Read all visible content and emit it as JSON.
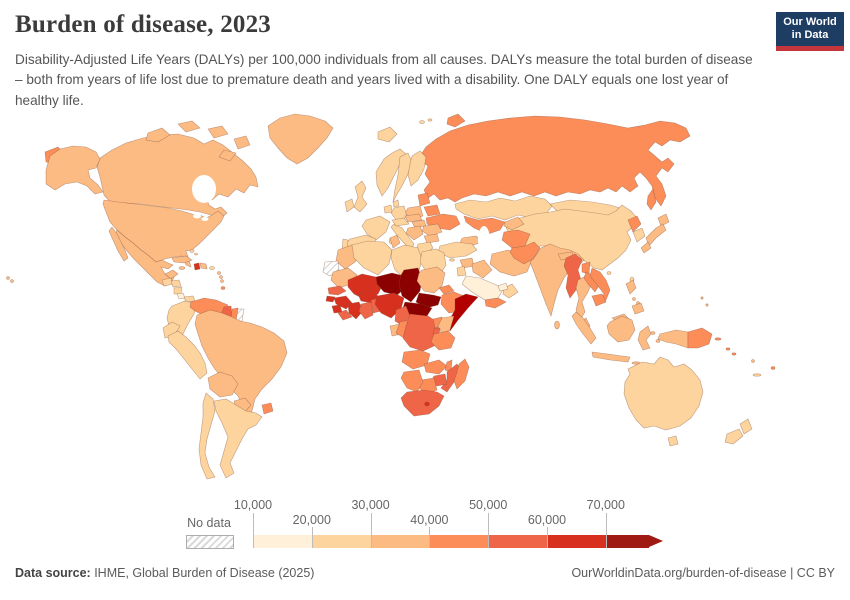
{
  "header": {
    "title": "Burden of disease, 2023",
    "subtitle": "Disability-Adjusted Life Years (DALYs) per 100,000 individuals from all causes. DALYs measure the total burden of disease – both from years of life lost due to premature death and years lived with a disability. One DALY equals one lost year of healthy life."
  },
  "logo": {
    "line1": "Our World",
    "line2": "in Data",
    "bg_color": "#1d3d63",
    "bar_color": "#c5353c"
  },
  "legend": {
    "no_data_label": "No data",
    "ticks": [
      "10,000",
      "20,000",
      "30,000",
      "40,000",
      "50,000",
      "60,000",
      "70,000"
    ],
    "bin_colors": [
      "#fef0d9",
      "#fdd49e",
      "#fdbb84",
      "#fc8d59",
      "#ef6548",
      "#d7301f",
      "#9e1a13"
    ]
  },
  "footer": {
    "source_label": "Data source:",
    "source_text": " IHME, Global Burden of Disease (2025)",
    "link_text": "OurWorldinData.org/burden-of-disease | CC BY"
  },
  "chart_data": {
    "type": "heatmap",
    "subtype": "choropleth_world_map",
    "title": "Burden of disease, 2023",
    "metric": "Disability-Adjusted Life Years (DALYs) per 100,000 individuals, all causes",
    "year": 2023,
    "legend_position": "bottom",
    "bins": [
      {
        "range": "10,000–20,000",
        "color": "#fef0d9",
        "countries": [
          "Costa Rica",
          "Saudi Arabia",
          "United Arab Emirates/Qatar"
        ]
      },
      {
        "range": "20,000–30,000",
        "color": "#fdd49e",
        "countries": [
          "Iceland",
          "Norway",
          "Sweden",
          "Finland",
          "Denmark",
          "United Kingdom",
          "Ireland",
          "France",
          "Germany",
          "Netherlands/Belgium",
          "Spain",
          "Portugal",
          "Italy",
          "Switzerland/Austria",
          "Greece",
          "Cyprus",
          "Turkey",
          "Israel/Jordan",
          "Oman",
          "Kazakhstan",
          "Mongolia",
          "China",
          "Taiwan",
          "South Korea",
          "Australia",
          "New Zealand",
          "New Caledonia",
          "Colombia",
          "Ecuador",
          "Peru",
          "Chile",
          "Argentina",
          "Guatemala",
          "Honduras",
          "Nicaragua",
          "Panama",
          "Algeria",
          "Libya",
          "Egypt",
          "Bahamas",
          "Puerto Rico"
        ]
      },
      {
        "range": "30,000–40,000",
        "color": "#fdbb84",
        "countries": [
          "United States",
          "Canada",
          "Greenland",
          "Mexico",
          "Cuba",
          "Jamaica",
          "Dominican Republic",
          "Lesser Antilles",
          "Brazil",
          "Bolivia",
          "Paraguay",
          "Morocco",
          "Tunisia",
          "Mauritania",
          "Sudan",
          "Kenya",
          "Gabon",
          "Poland",
          "Czechia/Slovakia",
          "Hungary",
          "Romania",
          "Balkans",
          "Bulgaria",
          "Caucasus",
          "Iran",
          "Iraq",
          "Syria",
          "Kyrgyzstan/Tajikistan",
          "India",
          "Nepal",
          "Bhutan",
          "Sri Lanka",
          "Thailand",
          "Malaysia",
          "Indonesia",
          "Philippines",
          "Japan",
          "Vanuatu",
          "Micronesia"
        ]
      },
      {
        "range": "40,000–50,000",
        "color": "#fc8d59",
        "countries": [
          "Russia",
          "Ukraine",
          "Belarus",
          "Baltic states",
          "Uzbekistan/Turkmenistan",
          "Afghanistan",
          "Pakistan",
          "Bangladesh",
          "Laos",
          "Vietnam",
          "Cambodia",
          "North Korea",
          "Papua New Guinea",
          "Solomon Islands",
          "Fiji",
          "Timor-Leste",
          "Venezuela",
          "Uruguay",
          "Suriname",
          "Trinidad and Tobago",
          "Yemen",
          "Eritrea",
          "Ethiopia",
          "Uganda",
          "Tanzania",
          "Congo",
          "Angola",
          "Zambia",
          "Malawi",
          "Namibia",
          "Botswana",
          "Madagascar"
        ]
      },
      {
        "range": "50,000–60,000",
        "color": "#ef6548",
        "countries": [
          "Myanmar",
          "Guyana",
          "Senegal",
          "Liberia",
          "Ghana",
          "Togo/Benin",
          "Cameroon",
          "DR Congo",
          "Rwanda/Burundi",
          "Mozambique",
          "Zimbabwe",
          "South Africa"
        ]
      },
      {
        "range": "60,000–70,000",
        "color": "#d7301f",
        "countries": [
          "Haiti",
          "Mali",
          "Burkina Faso",
          "Côte d'Ivoire",
          "Guinea",
          "Guinea-Bissau",
          "Sierra Leone",
          "Nigeria",
          "Lesotho"
        ]
      },
      {
        "range": "> 70,000",
        "color": "#9e1a13",
        "countries": [
          "Niger",
          "Chad",
          "Central African Republic",
          "South Sudan",
          "Somalia"
        ]
      }
    ],
    "no_data": [
      "Western Sahara",
      "French Guiana"
    ]
  },
  "map": {
    "regions": {
      "united_states": "#fdbb84",
      "canada": "#fdbb84",
      "greenland": "#fdbb84",
      "mexico": "#fdbb84",
      "guatemala": "#fdd49e",
      "honduras": "#fdd49e",
      "nicaragua": "#fdd49e",
      "costa_rica": "#fef0d9",
      "panama": "#fdd49e",
      "cuba": "#fdbb84",
      "jamaica": "#fdbb84",
      "haiti": "#d7301f",
      "dominican_republic": "#fdbb84",
      "puerto_rico": "#fdd49e",
      "bahamas": "#fdd49e",
      "lesser_antilles": "#fdbb84",
      "trinidad": "#fc8d59",
      "colombia": "#fdd49e",
      "venezuela": "#fc8d59",
      "guyana": "#ef6548",
      "suriname": "#fc8d59",
      "french_guiana": "no-data",
      "ecuador": "#fdd49e",
      "peru": "#fdd49e",
      "brazil": "#fdbb84",
      "bolivia": "#fdbb84",
      "paraguay": "#fdbb84",
      "uruguay": "#fc8d59",
      "argentina": "#fdd49e",
      "chile": "#fdd49e",
      "iceland": "#fdd49e",
      "norway": "#fdd49e",
      "sweden": "#fdd49e",
      "finland": "#fdd49e",
      "denmark": "#fdd49e",
      "united_kingdom": "#fdd49e",
      "ireland": "#fdd49e",
      "france": "#fdd49e",
      "germany": "#fdd49e",
      "benelux": "#fdd49e",
      "spain": "#fdd49e",
      "portugal": "#fdd49e",
      "italy": "#fdd49e",
      "switzerland_austria": "#fdd49e",
      "czech_slovakia": "#fdbb84",
      "poland": "#fdbb84",
      "hungary": "#fdbb84",
      "romania": "#fdbb84",
      "serbia_balkans": "#fdbb84",
      "bulgaria": "#fdbb84",
      "greece": "#fdd49e",
      "cyprus": "#fdd49e",
      "baltics": "#fc8d59",
      "belarus": "#fc8d59",
      "ukraine": "#fc8d59",
      "russia": "#fc8d59",
      "svalbard": "#fdd49e",
      "kazakhstan": "#fdd49e",
      "uzbek_turkmen": "#fc8d59",
      "kyrgyz_tajik": "#fdbb84",
      "caucasus": "#fdbb84",
      "turkey": "#fdd49e",
      "syria": "#fdbb84",
      "israel_jordan": "#fdd49e",
      "iraq": "#fdbb84",
      "iran": "#fdbb84",
      "saudi_arabia": "#fef0d9",
      "yemen": "#fc8d59",
      "oman": "#fdd49e",
      "uae_qatar": "#fef0d9",
      "afghanistan": "#fc8d59",
      "pakistan": "#fc8d59",
      "india": "#fdbb84",
      "nepal": "#fdbb84",
      "bhutan": "#fdbb84",
      "bangladesh": "#fc8d59",
      "sri_lanka": "#fdbb84",
      "myanmar": "#ef6548",
      "thailand": "#fdbb84",
      "laos": "#fc8d59",
      "vietnam": "#fc8d59",
      "cambodia": "#fc8d59",
      "malaysia": "#fdbb84",
      "indonesia": "#fdbb84",
      "east_timor": "#fc8d59",
      "philippines": "#fdbb84",
      "china": "#fdd49e",
      "mongolia": "#fdd49e",
      "taiwan": "#fdd49e",
      "hainan": "#fdd49e",
      "north_korea": "#fc8d59",
      "south_korea": "#fdd49e",
      "japan": "#fdbb84",
      "png": "#fc8d59",
      "solomon": "#fc8d59",
      "vanuatu": "#fdbb84",
      "fiji": "#fc8d59",
      "new_caledonia": "#fdd49e",
      "micronesia": "#fdbb84",
      "australia": "#fdd49e",
      "new_zealand": "#fdd49e",
      "morocco": "#fdbb84",
      "western_sahara": "no-data",
      "algeria": "#fdd49e",
      "tunisia": "#fdbb84",
      "libya": "#fdd49e",
      "egypt": "#fdd49e",
      "mauritania": "#fdbb84",
      "senegal": "#ef6548",
      "guinea_bissau": "#d7301f",
      "guinea": "#d7301f",
      "sierra_leone": "#d7301f",
      "liberia": "#ef6548",
      "mali": "#d7301f",
      "burkina_faso": "#d7301f",
      "cote_divoire": "#d7301f",
      "ghana": "#ef6548",
      "togo_benin": "#ef6548",
      "niger": "#8b0000",
      "nigeria": "#d7301f",
      "chad": "#8b0000",
      "sudan": "#fdbb84",
      "eritrea": "#fc8d59",
      "ethiopia": "#fc8d59",
      "somalia": "#b30000",
      "south_sudan": "#8b0000",
      "central_african_republic": "#8b0000",
      "cameroon": "#ef6548",
      "gabon": "#fdbb84",
      "congo": "#fc8d59",
      "drc": "#ef6548",
      "uganda": "#fc8d59",
      "kenya": "#fdbb84",
      "rwanda_burundi": "#ef6548",
      "tanzania": "#fc8d59",
      "angola": "#fc8d59",
      "zambia": "#fc8d59",
      "malawi": "#fc8d59",
      "mozambique": "#ef6548",
      "zimbabwe": "#ef6548",
      "botswana": "#fc8d59",
      "namibia": "#fc8d59",
      "south_africa": "#ef6548",
      "lesotho": "#d7301f",
      "madagascar": "#fc8d59"
    }
  }
}
